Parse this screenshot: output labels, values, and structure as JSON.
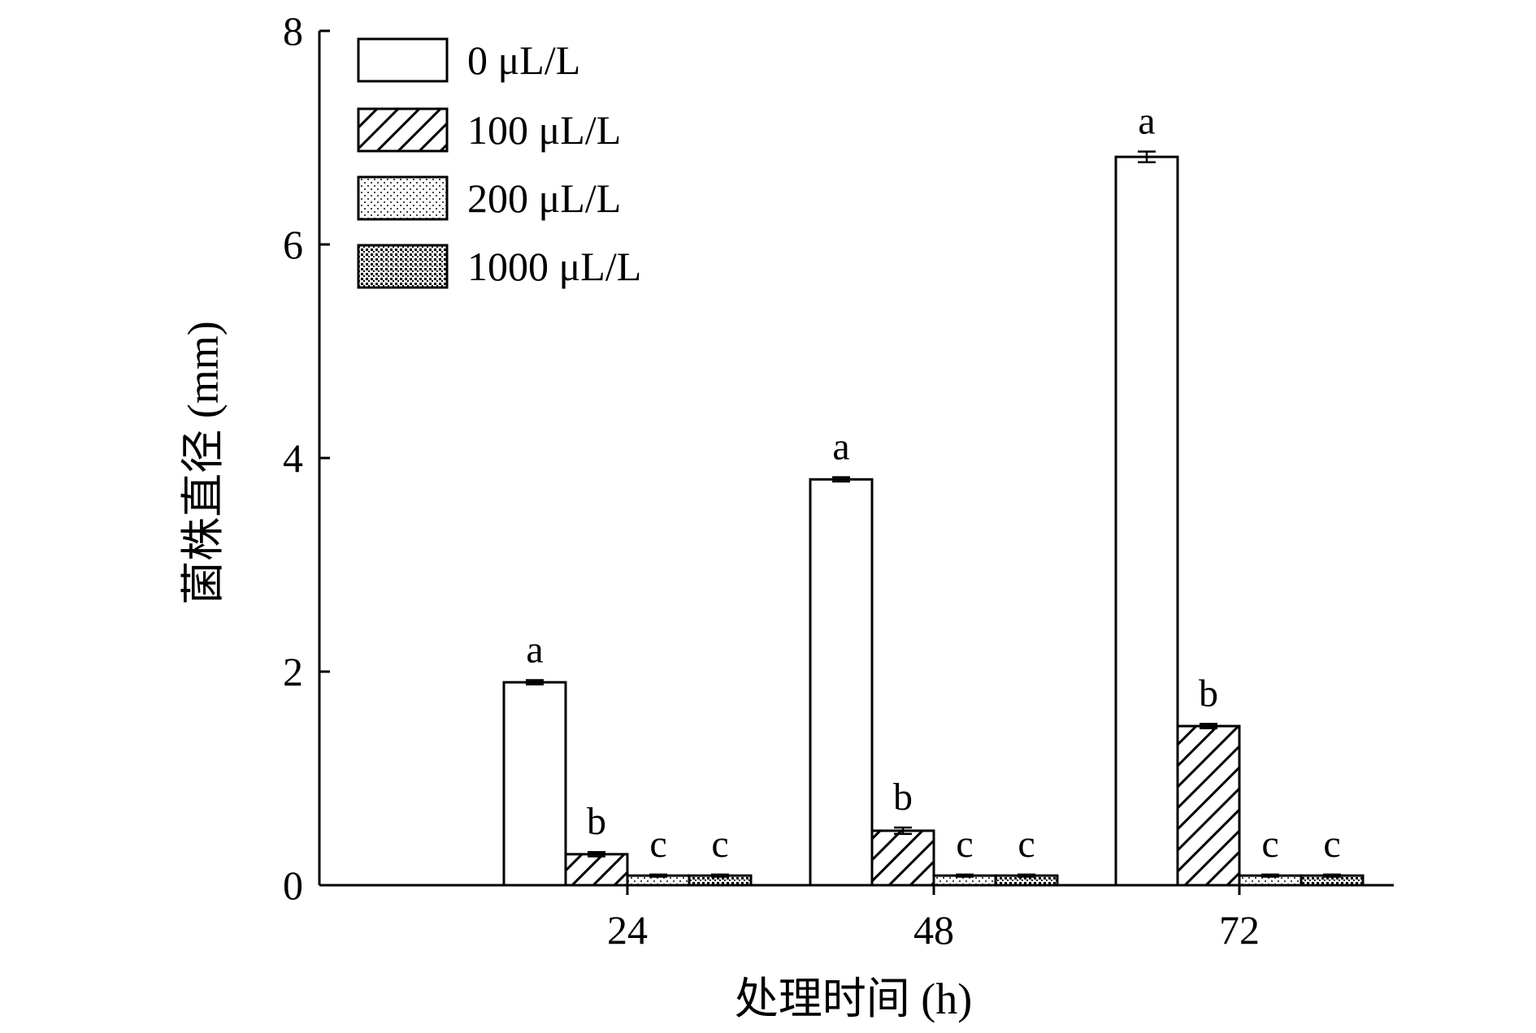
{
  "chart_data": {
    "type": "bar",
    "title": "",
    "xlabel": "处理时间 (h)",
    "ylabel": "菌株直径 (mm)",
    "categories": [
      "24",
      "48",
      "72"
    ],
    "ylim": [
      0,
      8
    ],
    "yticks": [
      0,
      2,
      4,
      6,
      8
    ],
    "legend_position": "top-left",
    "grid": false,
    "series": [
      {
        "name": "0 μL/L",
        "pattern": "white",
        "values": [
          1.9,
          3.8,
          6.82
        ],
        "errors": [
          0.02,
          0.02,
          0.05
        ],
        "labels": [
          "a",
          "a",
          "a"
        ]
      },
      {
        "name": "100 μL/L",
        "pattern": "hatch",
        "values": [
          0.29,
          0.51,
          1.49
        ],
        "errors": [
          0.02,
          0.03,
          0.02
        ],
        "labels": [
          "b",
          "b",
          "b"
        ]
      },
      {
        "name": "200 μL/L",
        "pattern": "light-dots",
        "values": [
          0.09,
          0.09,
          0.09
        ],
        "errors": [
          0.01,
          0.01,
          0.01
        ],
        "labels": [
          "c",
          "c",
          "c"
        ]
      },
      {
        "name": "1000 μL/L",
        "pattern": "dense-dots",
        "values": [
          0.09,
          0.09,
          0.09
        ],
        "errors": [
          0.01,
          0.01,
          0.01
        ],
        "labels": [
          "c",
          "c",
          "c"
        ]
      }
    ]
  }
}
